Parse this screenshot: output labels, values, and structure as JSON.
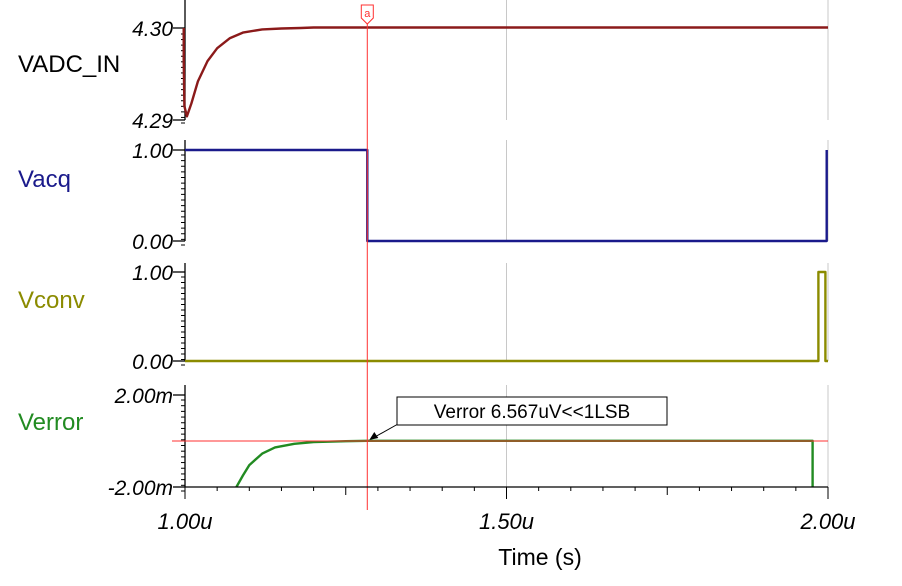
{
  "colors": {
    "grid": "#c8c8c8",
    "axis": "#000000",
    "cursor": "#ff3030",
    "annotation_border": "#000000",
    "VADC_IN": "#8b1a1a",
    "Vacq": "#1a1a8b",
    "Vconv": "#8b8b00",
    "Verror": "#228b22"
  },
  "cursor": {
    "label": "a",
    "x": 1.2835
  },
  "x_axis": {
    "label": "Time (s)",
    "ticks": [
      {
        "value": 1.0,
        "label": "1.00u"
      },
      {
        "value": 1.5,
        "label": "1.50u"
      },
      {
        "value": 2.0,
        "label": "2.00u"
      }
    ]
  },
  "annotation": {
    "text": "Verror 6.567uV<<1LSB",
    "x": 1.2835,
    "y": 0.006567
  },
  "chart_data": [
    {
      "type": "line",
      "name": "VADC_IN",
      "xlim": [
        1.0,
        2.0
      ],
      "ylim": [
        4.29,
        4.3
      ],
      "ytick_labels": [
        "4.30",
        "4.29"
      ],
      "x": [
        0.998,
        0.998,
        0.999,
        1.003,
        1.01,
        1.02,
        1.035,
        1.05,
        1.07,
        1.09,
        1.12,
        1.15,
        1.18,
        1.2,
        2.0
      ],
      "y": [
        4.3,
        4.2965,
        4.2915,
        4.2904,
        4.2918,
        4.2942,
        4.2964,
        4.2978,
        4.2989,
        4.2995,
        4.29985,
        4.29995,
        4.3,
        4.30005,
        4.30005
      ]
    },
    {
      "type": "line",
      "name": "Vacq",
      "xlim": [
        1.0,
        2.0
      ],
      "ylim": [
        0,
        1
      ],
      "ytick_labels": [
        "1.00",
        "0.00"
      ],
      "x": [
        1.0,
        1.2835,
        1.2835,
        1.998,
        1.998
      ],
      "y": [
        1.0,
        1.0,
        0.0,
        0.0,
        1.0
      ]
    },
    {
      "type": "line",
      "name": "Vconv",
      "xlim": [
        1.0,
        2.0
      ],
      "ylim": [
        0,
        1
      ],
      "ytick_labels": [
        "1.00",
        "0.00"
      ],
      "x": [
        1.0,
        1.985,
        1.985,
        1.996,
        1.996,
        2.0
      ],
      "y": [
        0.0,
        0.0,
        1.0,
        1.0,
        0.0,
        0.0
      ]
    },
    {
      "type": "line",
      "name": "Verror",
      "xlim": [
        1.0,
        2.0
      ],
      "ylim": [
        -2.0,
        2.0
      ],
      "ytick_labels": [
        "2.00m",
        "-2.00m"
      ],
      "x": [
        1.08,
        1.09,
        1.1,
        1.12,
        1.14,
        1.17,
        1.2,
        1.25,
        1.2835,
        1.35,
        1.976,
        1.976
      ],
      "y": [
        -2.0,
        -1.5,
        -1.05,
        -0.55,
        -0.28,
        -0.12,
        -0.05,
        -0.01,
        0.0066,
        0.01,
        0.01,
        -2.0
      ]
    }
  ]
}
